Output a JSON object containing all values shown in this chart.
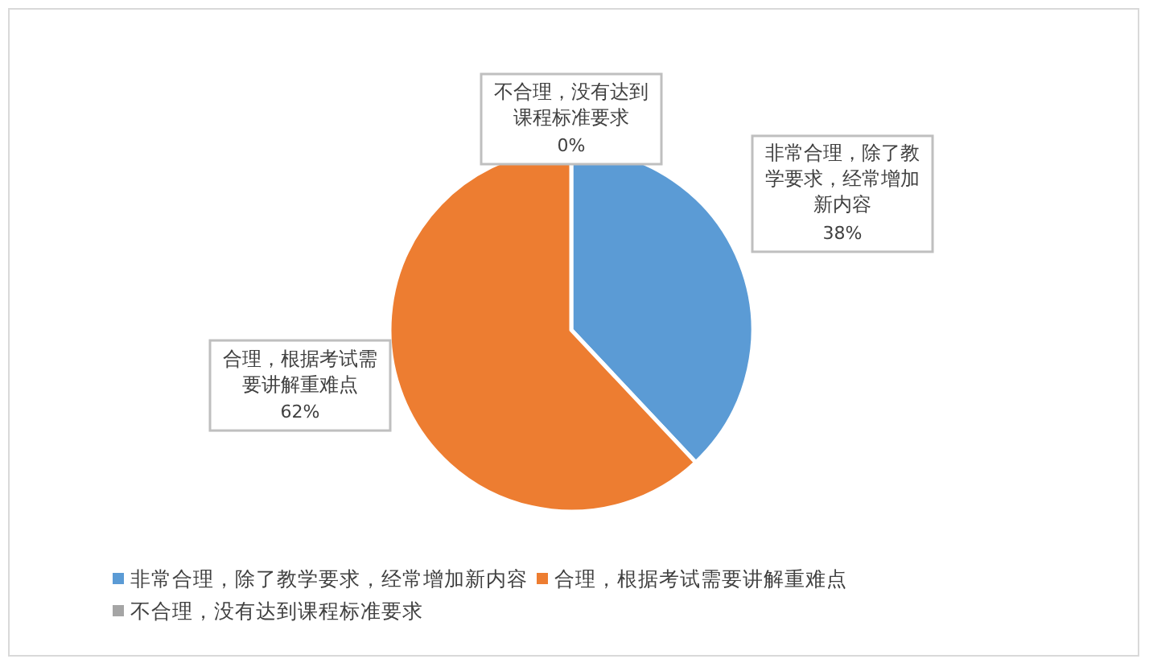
{
  "chart_data": {
    "type": "pie",
    "categories": [
      "非常合理，除了教学要求，经常增加新内容",
      "合理，根据考试需要讲解重难点",
      "不合理，没有达到课程标准要求"
    ],
    "values": [
      38,
      62,
      0
    ],
    "colors": [
      "#5b9bd5",
      "#ed7d31",
      "#a5a5a5"
    ],
    "value_labels": [
      "38%",
      "62%",
      "0%"
    ],
    "legend": "bottom"
  }
}
